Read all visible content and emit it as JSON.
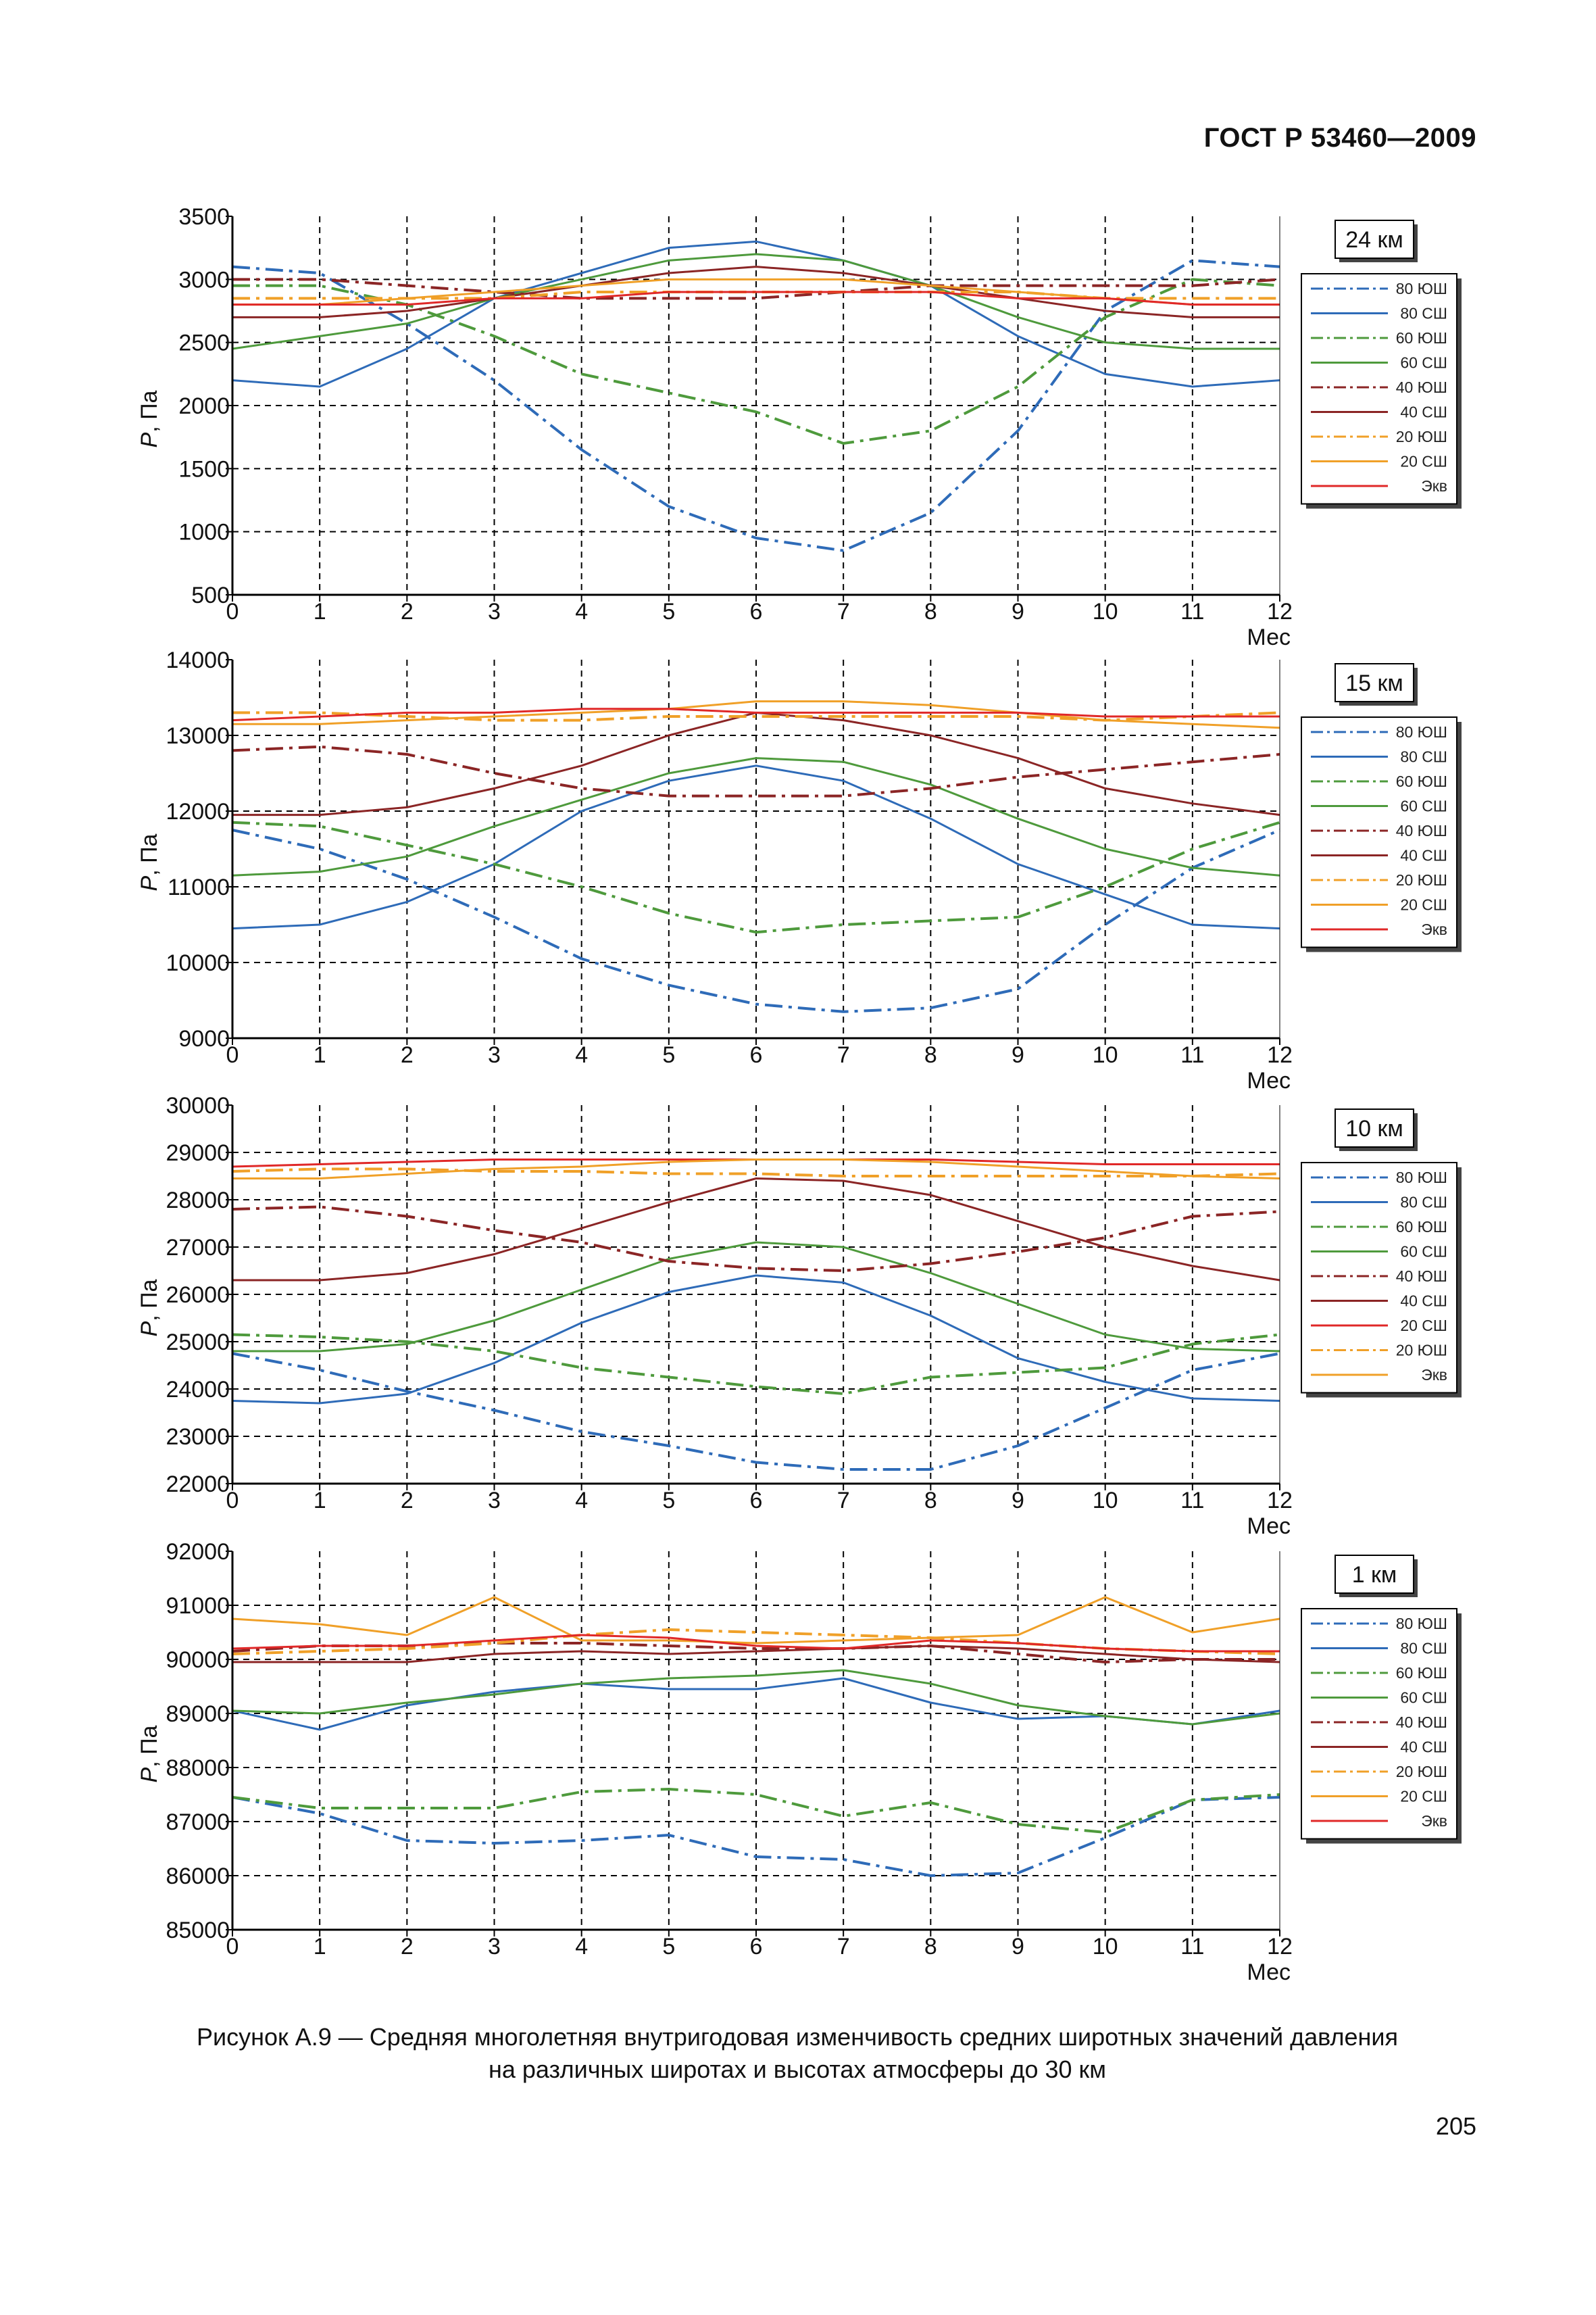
{
  "header": {
    "standard": "ГОСТ Р 53460—2009"
  },
  "caption": {
    "line1": "Рисунок А.9 — Средняя многолетняя внутригодовая изменчивость средних широтных значений давления",
    "line2": "на различных широтах и высотах атмосферы до 30 км"
  },
  "page_number": "205",
  "colors": {
    "blue": "#2e6bb8",
    "green": "#4e9a3c",
    "darkred": "#8b2525",
    "orange": "#f0a028",
    "red": "#e02828",
    "grid": "#000000"
  },
  "chart_data": [
    {
      "type": "line",
      "altitude_label": "24 км",
      "xlabel": "Мес",
      "ylabel_symbol": "P",
      "ylabel_unit": ", Па",
      "x": [
        0,
        1,
        2,
        3,
        4,
        5,
        6,
        7,
        8,
        9,
        10,
        11,
        12
      ],
      "ylim": [
        500,
        3500
      ],
      "yticks": [
        500,
        1000,
        1500,
        2000,
        2500,
        3000,
        3500
      ],
      "ytick_labels": [
        "500",
        "1000",
        "1500",
        "2000",
        "2500",
        "3000",
        "3500"
      ],
      "grid": true,
      "legend_placement": "right",
      "series": [
        {
          "name": "80 ЮШ",
          "color": "blue",
          "style": "dashdot",
          "values": [
            3100,
            3050,
            2650,
            2200,
            1650,
            1200,
            950,
            850,
            1150,
            1800,
            2750,
            3150,
            3100
          ]
        },
        {
          "name": "80 СШ",
          "color": "blue",
          "style": "solid",
          "values": [
            2200,
            2150,
            2450,
            2850,
            3050,
            3250,
            3300,
            3150,
            2950,
            2550,
            2250,
            2150,
            2200
          ]
        },
        {
          "name": "60 ЮШ",
          "color": "green",
          "style": "dashdot",
          "values": [
            2950,
            2950,
            2800,
            2550,
            2250,
            2100,
            1950,
            1700,
            1800,
            2150,
            2700,
            3000,
            2950
          ]
        },
        {
          "name": "60 СШ",
          "color": "green",
          "style": "solid",
          "values": [
            2450,
            2550,
            2650,
            2850,
            3000,
            3150,
            3200,
            3150,
            2950,
            2700,
            2500,
            2450,
            2450
          ]
        },
        {
          "name": "40 ЮШ",
          "color": "darkred",
          "style": "dashdot",
          "values": [
            3000,
            3000,
            2950,
            2900,
            2850,
            2850,
            2850,
            2900,
            2950,
            2950,
            2950,
            2950,
            3000
          ]
        },
        {
          "name": "40 СШ",
          "color": "darkred",
          "style": "solid",
          "values": [
            2700,
            2700,
            2750,
            2850,
            2950,
            3050,
            3100,
            3050,
            2950,
            2850,
            2750,
            2700,
            2700
          ]
        },
        {
          "name": "20 ЮШ",
          "color": "orange",
          "style": "dashdot",
          "values": [
            2850,
            2850,
            2850,
            2850,
            2900,
            2900,
            2900,
            2900,
            2900,
            2900,
            2850,
            2850,
            2850
          ]
        },
        {
          "name": "20 СШ",
          "color": "orange",
          "style": "solid",
          "values": [
            2800,
            2800,
            2850,
            2900,
            2950,
            3000,
            3000,
            3000,
            2950,
            2900,
            2850,
            2800,
            2800
          ]
        },
        {
          "name": "Экв",
          "color": "red",
          "style": "solid",
          "values": [
            2800,
            2800,
            2800,
            2850,
            2850,
            2900,
            2900,
            2900,
            2900,
            2850,
            2850,
            2800,
            2800
          ]
        }
      ]
    },
    {
      "type": "line",
      "altitude_label": "15 км",
      "xlabel": "Мес",
      "ylabel_symbol": "P",
      "ylabel_unit": ", Па",
      "x": [
        0,
        1,
        2,
        3,
        4,
        5,
        6,
        7,
        8,
        9,
        10,
        11,
        12
      ],
      "ylim": [
        9000,
        14000
      ],
      "yticks": [
        9000,
        10000,
        11000,
        12000,
        13000,
        14000
      ],
      "ytick_labels": [
        "9000",
        "10000",
        "11000",
        "12000",
        "13000",
        "14000"
      ],
      "grid": true,
      "legend_placement": "right",
      "series": [
        {
          "name": "80 ЮШ",
          "color": "blue",
          "style": "dashdot",
          "values": [
            11750,
            11500,
            11100,
            10600,
            10050,
            9700,
            9450,
            9350,
            9400,
            9650,
            10500,
            11250,
            11750
          ]
        },
        {
          "name": "80 СШ",
          "color": "blue",
          "style": "solid",
          "values": [
            10450,
            10500,
            10800,
            11300,
            12000,
            12400,
            12600,
            12400,
            11900,
            11300,
            10900,
            10500,
            10450
          ]
        },
        {
          "name": "60 ЮШ",
          "color": "green",
          "style": "dashdot",
          "values": [
            11850,
            11800,
            11550,
            11300,
            11000,
            10650,
            10400,
            10500,
            10550,
            10600,
            11000,
            11500,
            11850
          ]
        },
        {
          "name": "60 СШ",
          "color": "green",
          "style": "solid",
          "values": [
            11150,
            11200,
            11400,
            11800,
            12150,
            12500,
            12700,
            12650,
            12350,
            11900,
            11500,
            11250,
            11150
          ]
        },
        {
          "name": "40 ЮШ",
          "color": "darkred",
          "style": "dashdot",
          "values": [
            12800,
            12850,
            12750,
            12500,
            12300,
            12200,
            12200,
            12200,
            12300,
            12450,
            12550,
            12650,
            12750
          ]
        },
        {
          "name": "40 СШ",
          "color": "darkred",
          "style": "solid",
          "values": [
            11950,
            11950,
            12050,
            12300,
            12600,
            13000,
            13300,
            13200,
            13000,
            12700,
            12300,
            12100,
            11950
          ]
        },
        {
          "name": "20 ЮШ",
          "color": "orange",
          "style": "dashdot",
          "values": [
            13300,
            13300,
            13250,
            13200,
            13200,
            13250,
            13250,
            13250,
            13250,
            13250,
            13200,
            13250,
            13300
          ]
        },
        {
          "name": "20 СШ",
          "color": "orange",
          "style": "solid",
          "values": [
            13150,
            13150,
            13200,
            13250,
            13300,
            13350,
            13450,
            13450,
            13400,
            13300,
            13200,
            13150,
            13100
          ]
        },
        {
          "name": "Экв",
          "color": "red",
          "style": "solid",
          "values": [
            13200,
            13250,
            13300,
            13300,
            13350,
            13350,
            13300,
            13300,
            13300,
            13300,
            13250,
            13250,
            13250
          ]
        }
      ]
    },
    {
      "type": "line",
      "altitude_label": "10 км",
      "xlabel": "Мес",
      "ylabel_symbol": "P",
      "ylabel_unit": ", Па",
      "x": [
        0,
        1,
        2,
        3,
        4,
        5,
        6,
        7,
        8,
        9,
        10,
        11,
        12
      ],
      "ylim": [
        22000,
        30000
      ],
      "yticks": [
        22000,
        23000,
        24000,
        25000,
        26000,
        27000,
        28000,
        29000,
        30000
      ],
      "ytick_labels": [
        "22000",
        "23000",
        "24000",
        "25000",
        "26000",
        "27000",
        "28000",
        "29000",
        "30000"
      ],
      "grid": true,
      "legend_placement": "right",
      "series": [
        {
          "name": "80 ЮШ",
          "color": "blue",
          "style": "dashdot",
          "values": [
            24750,
            24400,
            23950,
            23550,
            23100,
            22800,
            22450,
            22300,
            22300,
            22800,
            23600,
            24400,
            24750
          ]
        },
        {
          "name": "80 СШ",
          "color": "blue",
          "style": "solid",
          "values": [
            23750,
            23700,
            23900,
            24550,
            25400,
            26050,
            26400,
            26250,
            25550,
            24650,
            24150,
            23800,
            23750
          ]
        },
        {
          "name": "60 ЮШ",
          "color": "green",
          "style": "dashdot",
          "values": [
            25150,
            25100,
            25000,
            24800,
            24450,
            24250,
            24050,
            23900,
            24250,
            24350,
            24450,
            24950,
            25150
          ]
        },
        {
          "name": "60 СШ",
          "color": "green",
          "style": "solid",
          "values": [
            24800,
            24800,
            24950,
            25450,
            26100,
            26750,
            27100,
            27000,
            26450,
            25800,
            25150,
            24850,
            24800
          ]
        },
        {
          "name": "40 ЮШ",
          "color": "darkred",
          "style": "dashdot",
          "values": [
            27800,
            27850,
            27650,
            27350,
            27100,
            26700,
            26550,
            26500,
            26650,
            26900,
            27200,
            27650,
            27750
          ]
        },
        {
          "name": "40 СШ",
          "color": "darkred",
          "style": "solid",
          "values": [
            26300,
            26300,
            26450,
            26850,
            27400,
            27950,
            28450,
            28400,
            28100,
            27550,
            27000,
            26600,
            26300
          ]
        },
        {
          "name": "20 СШ",
          "color": "red",
          "style": "solid",
          "values": [
            28700,
            28750,
            28800,
            28850,
            28850,
            28850,
            28850,
            28850,
            28850,
            28800,
            28750,
            28750,
            28750
          ]
        },
        {
          "name": "20 ЮШ",
          "color": "orange",
          "style": "dashdot",
          "values": [
            28600,
            28650,
            28650,
            28600,
            28600,
            28550,
            28550,
            28500,
            28500,
            28500,
            28500,
            28500,
            28550
          ]
        },
        {
          "name": "Экв",
          "color": "orange",
          "style": "solid",
          "values": [
            28450,
            28450,
            28550,
            28650,
            28700,
            28800,
            28850,
            28850,
            28800,
            28700,
            28600,
            28500,
            28450
          ]
        }
      ]
    },
    {
      "type": "line",
      "altitude_label": "1 км",
      "xlabel": "Мес",
      "ylabel_symbol": "P",
      "ylabel_unit": ", Па",
      "x": [
        0,
        1,
        2,
        3,
        4,
        5,
        6,
        7,
        8,
        9,
        10,
        11,
        12
      ],
      "ylim": [
        85000,
        92000
      ],
      "yticks": [
        85000,
        86000,
        87000,
        88000,
        89000,
        90000,
        91000,
        92000
      ],
      "ytick_labels": [
        "85000",
        "86000",
        "87000",
        "88000",
        "89000",
        "90000",
        "91000",
        "92000"
      ],
      "grid": true,
      "legend_placement": "right",
      "series": [
        {
          "name": "80 ЮШ",
          "color": "blue",
          "style": "dashdot",
          "values": [
            87450,
            87150,
            86650,
            86600,
            86650,
            86750,
            86350,
            86300,
            86000,
            86050,
            86700,
            87400,
            87450
          ]
        },
        {
          "name": "80 СШ",
          "color": "blue",
          "style": "solid",
          "values": [
            89050,
            88700,
            89150,
            89400,
            89550,
            89450,
            89450,
            89650,
            89200,
            88900,
            88950,
            88800,
            89050
          ]
        },
        {
          "name": "60 ЮШ",
          "color": "green",
          "style": "dashdot",
          "values": [
            87450,
            87250,
            87250,
            87250,
            87550,
            87600,
            87500,
            87100,
            87350,
            86950,
            86800,
            87400,
            87500
          ]
        },
        {
          "name": "60 СШ",
          "color": "green",
          "style": "solid",
          "values": [
            89050,
            89000,
            89200,
            89350,
            89550,
            89650,
            89700,
            89800,
            89550,
            89150,
            88950,
            88800,
            89000
          ]
        },
        {
          "name": "40 ЮШ",
          "color": "darkred",
          "style": "dashdot",
          "values": [
            90150,
            90250,
            90250,
            90300,
            90300,
            90250,
            90200,
            90200,
            90250,
            90100,
            89950,
            90000,
            90000
          ]
        },
        {
          "name": "40 СШ",
          "color": "darkred",
          "style": "solid",
          "values": [
            89950,
            89950,
            89950,
            90100,
            90150,
            90100,
            90150,
            90200,
            90250,
            90200,
            90100,
            90000,
            89950
          ]
        },
        {
          "name": "20 ЮШ",
          "color": "orange",
          "style": "dashdot",
          "values": [
            90100,
            90150,
            90200,
            90300,
            90450,
            90550,
            90500,
            90450,
            90400,
            90300,
            90200,
            90150,
            90100
          ]
        },
        {
          "name": "20 СШ",
          "color": "orange",
          "style": "solid",
          "values": [
            90750,
            90650,
            90450,
            91150,
            90350,
            90350,
            90300,
            90350,
            90400,
            90450,
            91150,
            90500,
            90750
          ]
        },
        {
          "name": "Экв",
          "color": "red",
          "style": "solid",
          "values": [
            90200,
            90250,
            90250,
            90350,
            90450,
            90400,
            90250,
            90200,
            90350,
            90300,
            90200,
            90150,
            90150
          ]
        }
      ]
    }
  ]
}
